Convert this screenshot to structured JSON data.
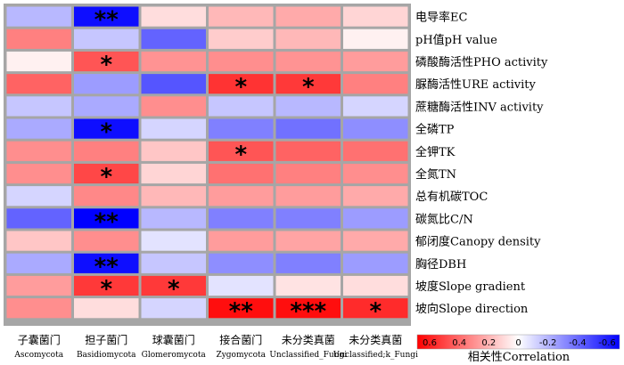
{
  "chart_data": {
    "type": "heatmap",
    "rows": [
      "电导率EC",
      "pH值pH value",
      "磷酸酶活性PHO activity",
      "脲酶活性URE activity",
      "蔗糖酶活性INV activity",
      "全磷TP",
      "全钾TK",
      "全氮TN",
      "总有机碳TOC",
      "碳氮比C/N",
      "郁闭度Canopy density",
      "胸径DBH",
      "坡度Slope gradient",
      "坡向Slope direction"
    ],
    "columns": [
      {
        "cn": "子囊菌门",
        "en": "Ascomycota"
      },
      {
        "cn": "担子菌门",
        "en": "Basidiomycota"
      },
      {
        "cn": "球囊菌门",
        "en": "Glomeromycota"
      },
      {
        "cn": "接合菌门",
        "en": "Zygomycota"
      },
      {
        "cn": "未分类真菌",
        "en": "Unclassified_Fungi"
      },
      {
        "cn": "未分类真菌",
        "en": "Unclassified;k_Fungi"
      }
    ],
    "values": [
      [
        -0.25,
        -0.85,
        0.12,
        0.25,
        0.3,
        0.15
      ],
      [
        0.45,
        -0.2,
        -0.55,
        0.18,
        0.25,
        0.05
      ],
      [
        0.05,
        0.6,
        0.38,
        0.4,
        0.38,
        0.35
      ],
      [
        0.55,
        -0.35,
        -0.6,
        0.72,
        0.7,
        0.45
      ],
      [
        -0.2,
        -0.3,
        0.4,
        -0.2,
        -0.25,
        -0.15
      ],
      [
        -0.3,
        -0.85,
        -0.15,
        -0.45,
        -0.5,
        -0.4
      ],
      [
        0.4,
        0.45,
        0.2,
        0.6,
        0.55,
        0.5
      ],
      [
        0.4,
        0.65,
        0.15,
        0.5,
        0.45,
        0.4
      ],
      [
        -0.15,
        0.42,
        0.25,
        0.35,
        0.35,
        0.3
      ],
      [
        -0.55,
        -0.9,
        -0.25,
        -0.45,
        -0.45,
        -0.35
      ],
      [
        0.2,
        0.4,
        -0.1,
        0.35,
        0.32,
        0.3
      ],
      [
        -0.3,
        -0.85,
        -0.2,
        -0.4,
        -0.45,
        -0.35
      ],
      [
        0.35,
        0.7,
        0.7,
        -0.1,
        0.1,
        0.12
      ],
      [
        0.4,
        0.12,
        -0.15,
        0.85,
        0.85,
        0.75
      ]
    ],
    "stars": [
      [
        "",
        "**",
        "",
        "",
        "",
        ""
      ],
      [
        "",
        "",
        "",
        "",
        "",
        ""
      ],
      [
        "",
        "*",
        "",
        "",
        "",
        ""
      ],
      [
        "",
        "",
        "",
        "*",
        "*",
        ""
      ],
      [
        "",
        "",
        "",
        "",
        "",
        ""
      ],
      [
        "",
        "*",
        "",
        "",
        "",
        ""
      ],
      [
        "",
        "",
        "",
        "*",
        "",
        ""
      ],
      [
        "",
        "*",
        "",
        "",
        "",
        ""
      ],
      [
        "",
        "",
        "",
        "",
        "",
        ""
      ],
      [
        "",
        "**",
        "",
        "",
        "",
        ""
      ],
      [
        "",
        "",
        "",
        "",
        "",
        ""
      ],
      [
        "",
        "**",
        "",
        "",
        "",
        ""
      ],
      [
        "",
        "*",
        "*",
        "",
        "",
        ""
      ],
      [
        "",
        "",
        "",
        "**",
        "***",
        "*"
      ]
    ],
    "legend": {
      "title": "相关性Correlation",
      "ticks": [
        "0.6",
        "0.4",
        "0.2",
        "0",
        "-0.2",
        "-0.4",
        "-0.6"
      ],
      "positive_color": "#ff0000",
      "neutral_color": "#ffffff",
      "negative_color": "#0000ff",
      "range": [
        0.7,
        -0.7
      ]
    }
  }
}
